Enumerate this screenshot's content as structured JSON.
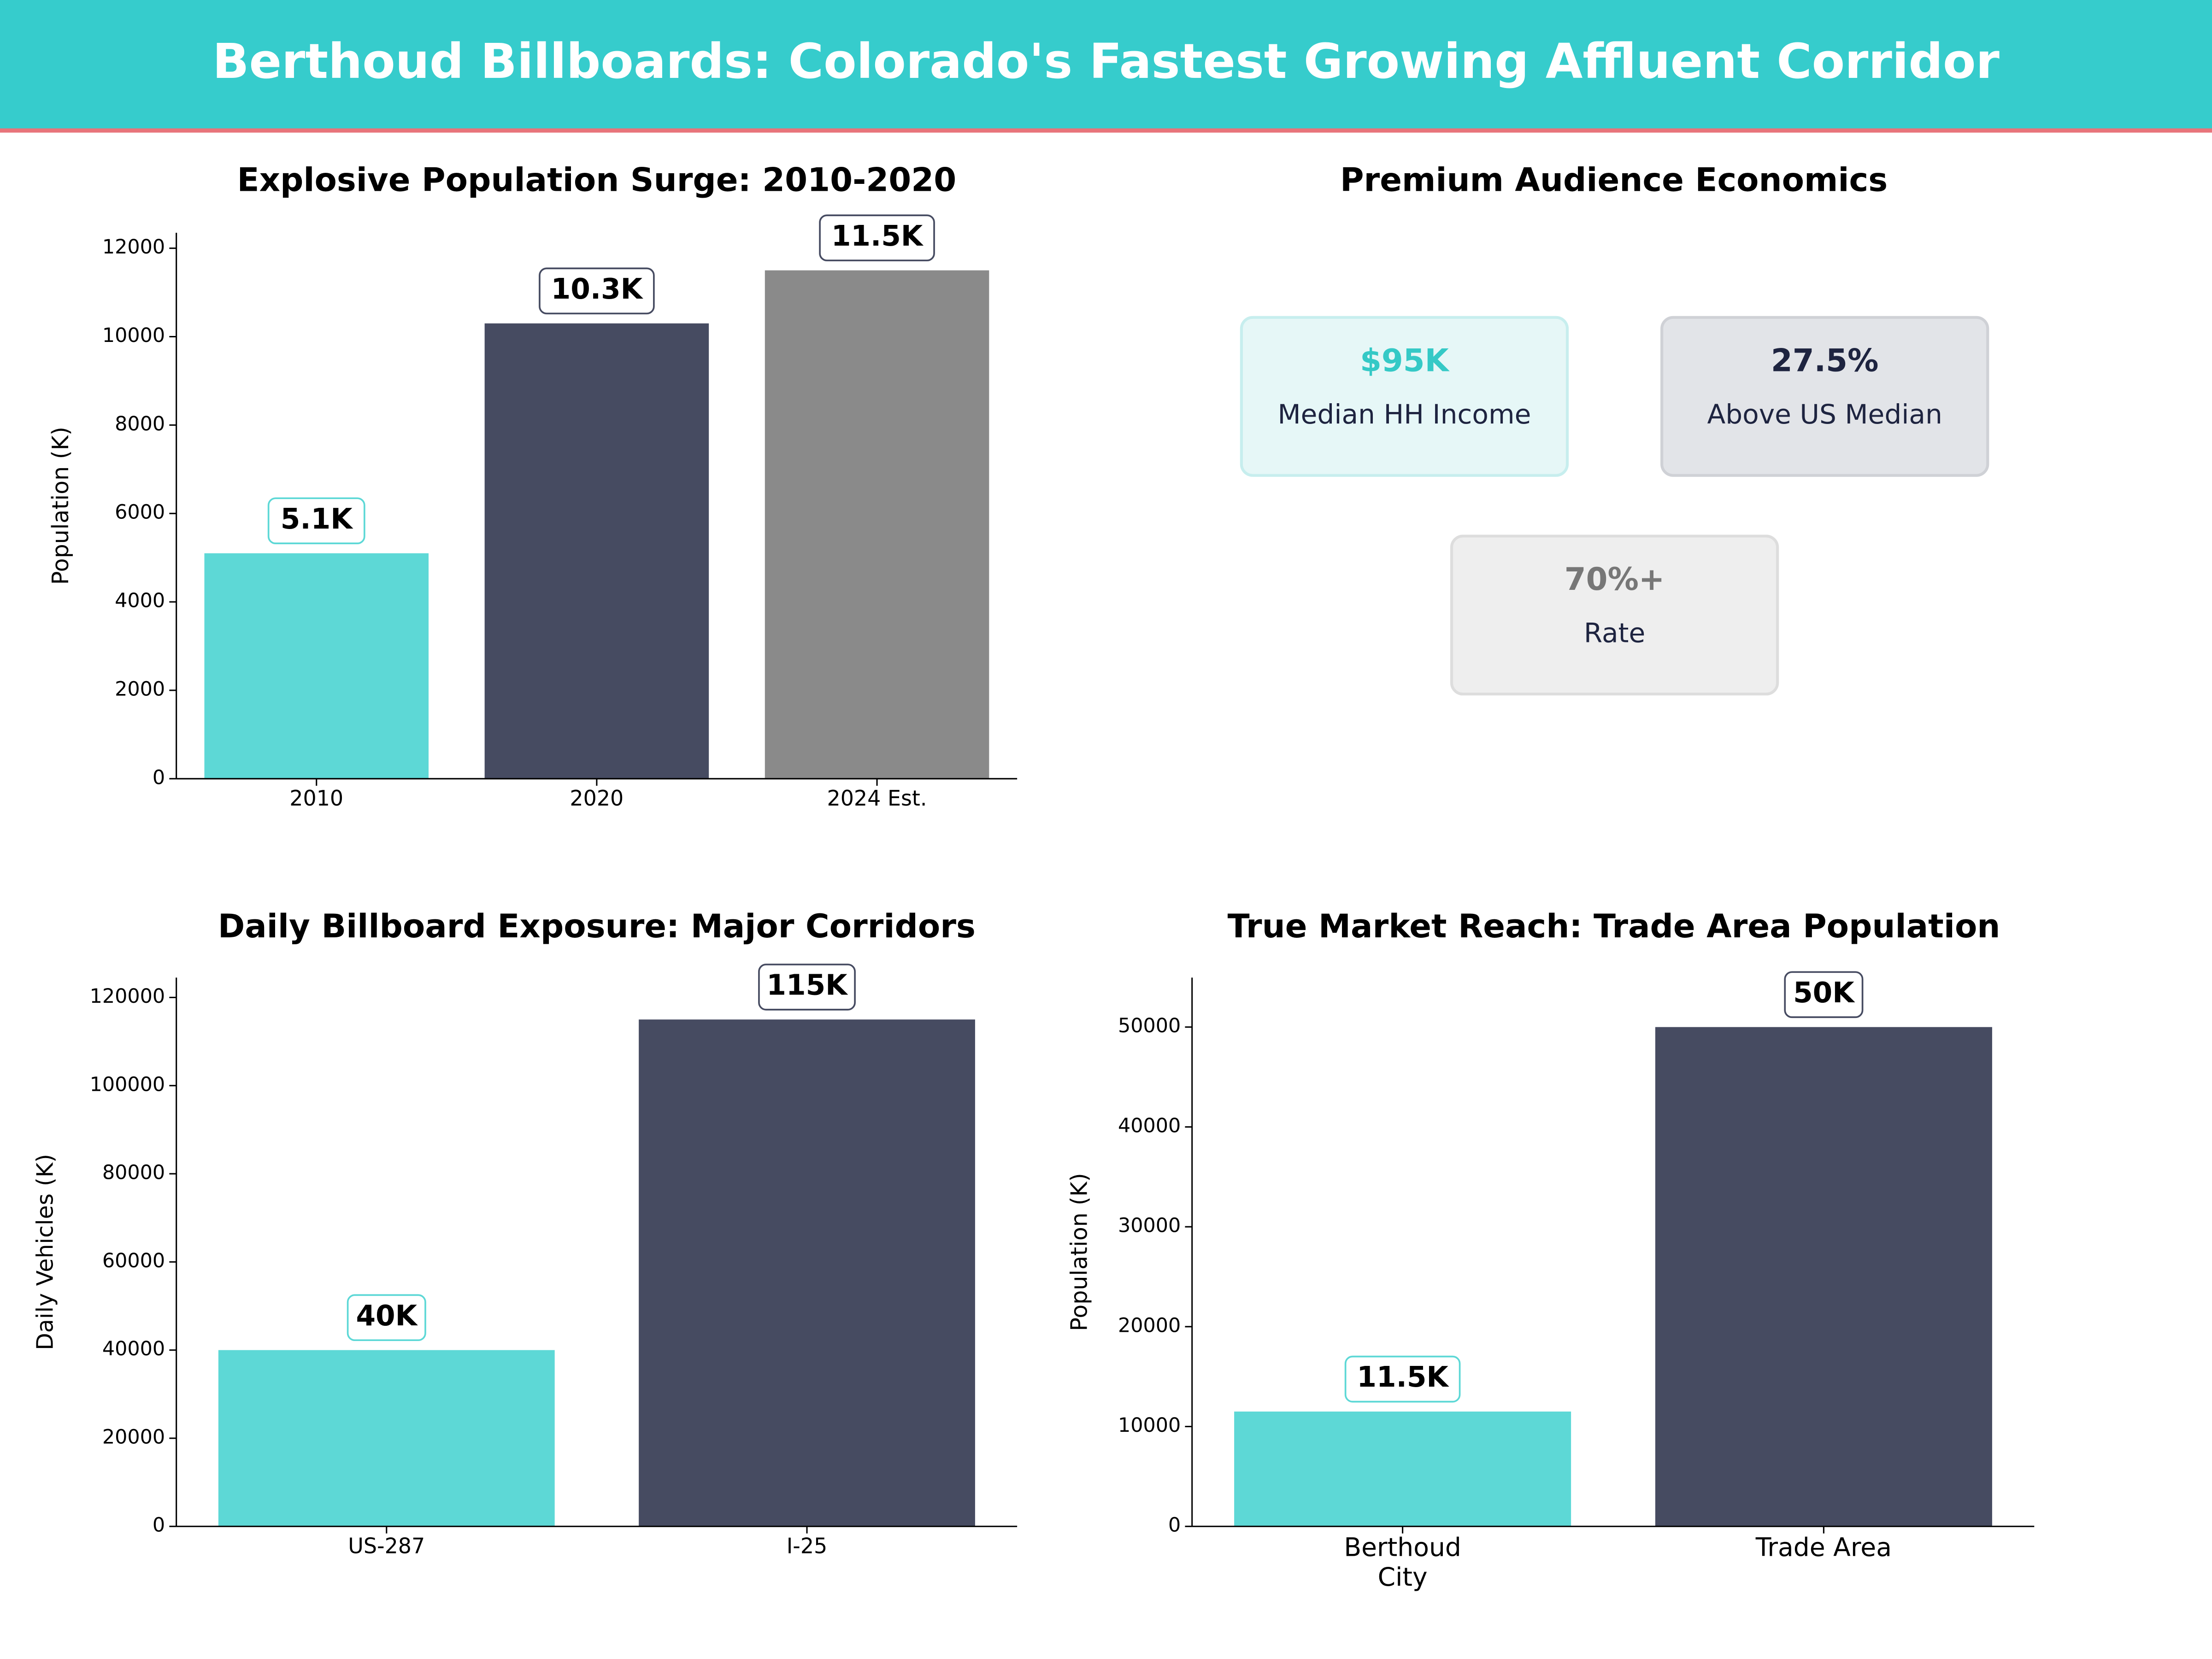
{
  "header": {
    "title": "Berthoud Billboards: Colorado's Fastest Growing Affluent Corridor"
  },
  "chart_data": [
    {
      "type": "bar",
      "title": "Explosive Population Surge: 2010-2020",
      "y_label": "Population (K)",
      "categories": [
        "2010",
        "2020",
        "2024 Est."
      ],
      "values": [
        5100,
        10300,
        11500
      ],
      "value_labels": [
        "5.1K",
        "10.3K",
        "11.5K"
      ],
      "colors": [
        "#5dd8d6",
        "#464b61",
        "#8a8a8a"
      ],
      "ylim": [
        0,
        12350
      ],
      "yticks": [
        0,
        2000,
        4000,
        6000,
        8000,
        10000,
        12000
      ]
    },
    {
      "type": "kpi",
      "title": "Premium Audience Economics",
      "cards": [
        {
          "value": "$95K",
          "label": "Median HH Income",
          "color": "#35c9c6"
        },
        {
          "value": "27.5%",
          "label": "Above US Median",
          "color": "#1e2440"
        },
        {
          "value": "70%+",
          "label": "Rate",
          "color": "#777777"
        }
      ]
    },
    {
      "type": "bar",
      "title": "Daily Billboard Exposure: Major Corridors",
      "y_label": "Daily Vehicles (K)",
      "categories": [
        "US-287",
        "I-25"
      ],
      "values": [
        40000,
        115000
      ],
      "value_labels": [
        "40K",
        "115K"
      ],
      "colors": [
        "#5dd8d6",
        "#464b61"
      ],
      "ylim": [
        0,
        124500
      ],
      "yticks": [
        0,
        20000,
        40000,
        60000,
        80000,
        100000,
        120000
      ]
    },
    {
      "type": "bar",
      "title": "True Market Reach: Trade Area Population",
      "y_label": "Population (K)",
      "categories": [
        "Berthoud\nCity",
        "Trade Area"
      ],
      "values": [
        11500,
        50000
      ],
      "value_labels": [
        "11.5K",
        "50K"
      ],
      "colors": [
        "#5dd8d6",
        "#464b61"
      ],
      "ylim": [
        0,
        54950
      ],
      "yticks": [
        0,
        10000,
        20000,
        30000,
        40000,
        50000
      ]
    }
  ]
}
